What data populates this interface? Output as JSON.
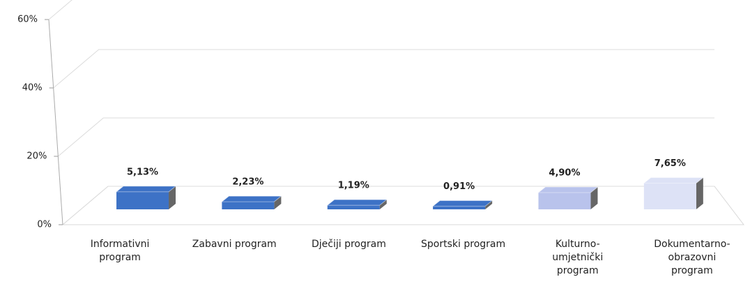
{
  "chart_data": {
    "type": "bar3d",
    "categories": [
      "Informativni program",
      "Zabavni program",
      "Dječiji program",
      "Sportski program",
      "Kulturno-umjetnički program",
      "Dokumentarno-obrazovni program"
    ],
    "values": [
      5.13,
      2.23,
      1.19,
      0.91,
      4.9,
      7.65
    ],
    "value_labels": [
      "5,13%",
      "2,23%",
      "1,19%",
      "0,91%",
      "4,90%",
      "7,65%"
    ],
    "colors": [
      "#3d72c6",
      "#3d72c6",
      "#3d72c6",
      "#3d72c6",
      "#b9c3ec",
      "#dde2f6"
    ],
    "ylim": [
      0,
      60
    ],
    "yticks": [
      {
        "value": 0,
        "label": "0%"
      },
      {
        "value": 20,
        "label": "20%"
      },
      {
        "value": 40,
        "label": "40%"
      },
      {
        "value": 60,
        "label": "60%"
      }
    ],
    "grid": true
  }
}
